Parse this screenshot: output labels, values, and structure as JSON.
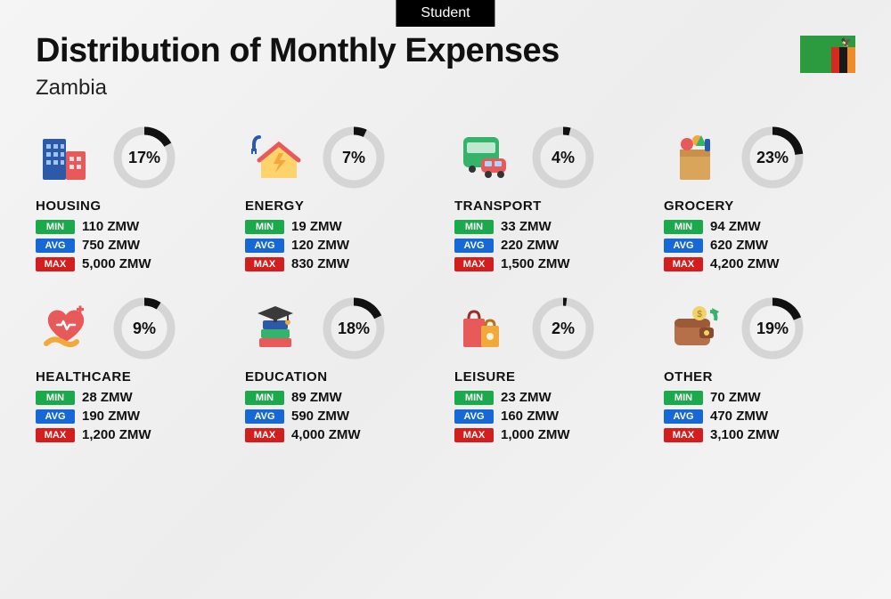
{
  "badge": "Student",
  "title": "Distribution of Monthly Expenses",
  "country": "Zambia",
  "flag": {
    "base": "#2c9a3e",
    "stripes": [
      "#d52b1e",
      "#1a1a1a",
      "#f08c28"
    ]
  },
  "currency": "ZMW",
  "labels": {
    "min": "MIN",
    "avg": "AVG",
    "max": "MAX"
  },
  "colors": {
    "min_tag": "#1aaa4c",
    "avg_tag": "#1668d6",
    "max_tag": "#d31e1e",
    "donut_fg": "#111111",
    "donut_bg": "#d5d5d5"
  },
  "donut": {
    "radius": 30,
    "stroke": 9
  },
  "categories": [
    {
      "key": "housing",
      "name": "HOUSING",
      "pct": 17,
      "min": "110",
      "avg": "750",
      "max": "5,000",
      "icon": "buildings"
    },
    {
      "key": "energy",
      "name": "ENERGY",
      "pct": 7,
      "min": "19",
      "avg": "120",
      "max": "830",
      "icon": "house-bolt"
    },
    {
      "key": "transport",
      "name": "TRANSPORT",
      "pct": 4,
      "min": "33",
      "avg": "220",
      "max": "1,500",
      "icon": "bus-car"
    },
    {
      "key": "grocery",
      "name": "GROCERY",
      "pct": 23,
      "min": "94",
      "avg": "620",
      "max": "4,200",
      "icon": "grocery-bag"
    },
    {
      "key": "healthcare",
      "name": "HEALTHCARE",
      "pct": 9,
      "min": "28",
      "avg": "190",
      "max": "1,200",
      "icon": "heart-hand"
    },
    {
      "key": "education",
      "name": "EDUCATION",
      "pct": 18,
      "min": "89",
      "avg": "590",
      "max": "4,000",
      "icon": "grad-books"
    },
    {
      "key": "leisure",
      "name": "LEISURE",
      "pct": 2,
      "min": "23",
      "avg": "160",
      "max": "1,000",
      "icon": "shopping-bags"
    },
    {
      "key": "other",
      "name": "OTHER",
      "pct": 19,
      "min": "70",
      "avg": "470",
      "max": "3,100",
      "icon": "wallet"
    }
  ]
}
